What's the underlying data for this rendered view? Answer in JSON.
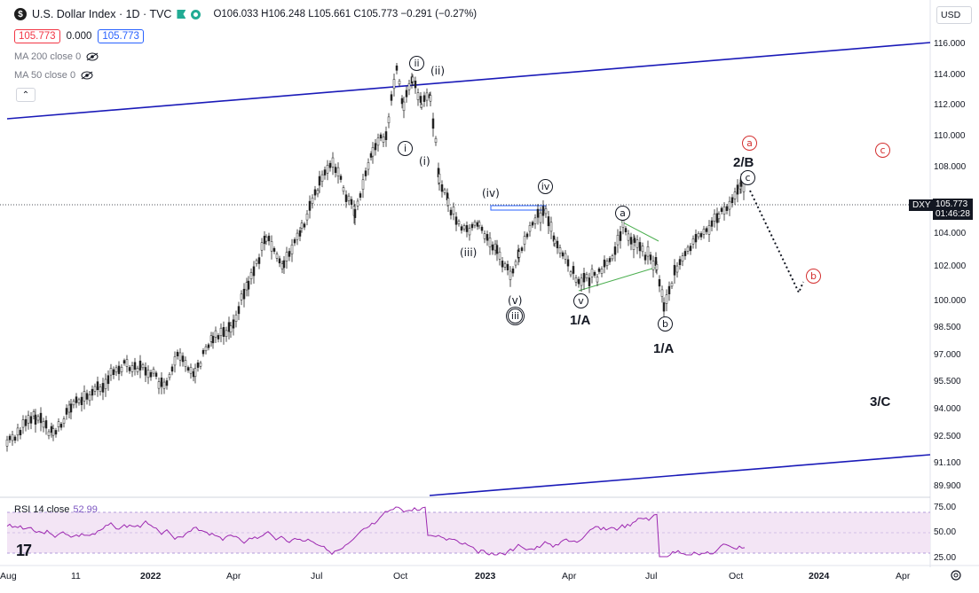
{
  "symbol": {
    "logo_glyph": "$",
    "title": "U.S. Dollar Index · 1D · TVC",
    "ohlc": "O106.033 H106.248 L105.661 C105.773 −0.291 (−0.27%)",
    "bid": "105.773",
    "spread": "0.000",
    "ask": "105.773"
  },
  "indicators": {
    "ma200": "MA 200 close 0",
    "ma50": "MA 50 close 0",
    "collapse_glyph": "⌃",
    "rsi_label": "RSI 14 close",
    "rsi_value": "52.99"
  },
  "currency_select": "USD",
  "price_axis": {
    "labels": [
      "116.000",
      "114.000",
      "112.000",
      "110.000",
      "108.000",
      "104.000",
      "102.000",
      "100.000",
      "98.500",
      "97.000",
      "95.500",
      "94.000",
      "92.500",
      "91.100",
      "89.900"
    ],
    "last_tag": "DXY",
    "last_price": "105.773",
    "countdown": "01:46:28"
  },
  "rsi_axis": [
    "75.00",
    "50.00",
    "25.00"
  ],
  "time_axis": [
    "Aug",
    "11",
    "2022",
    "Apr",
    "Jul",
    "Oct",
    "2023",
    "Apr",
    "Jul",
    "Oct",
    "2024",
    "Apr"
  ],
  "wave_labels": {
    "ii_circle": "ii",
    "ii_paren": "(ii)",
    "i_circle": "i",
    "i_paren": "(i)",
    "iv_paren": "(iv)",
    "iv_circle": "iv",
    "iii_paren": "(iii)",
    "v_paren": "(v)",
    "iii_circle": "iii",
    "v_circle": "v",
    "one_a_1": "1/A",
    "a_circle": "a",
    "b_circle": "b",
    "one_a_2": "1/A",
    "two_b": "2/B",
    "c_circle": "c",
    "a_red": "a",
    "c_red": "c",
    "b_red": "b",
    "three_c": "3/C"
  },
  "colors": {
    "channel": "#1a1ab8",
    "candles": "#222222",
    "rsi_line": "#9c27b0",
    "rsi_band": "#f3e5f5",
    "green_wedge": "#4caf50",
    "red_label": "#d32f2f"
  }
}
